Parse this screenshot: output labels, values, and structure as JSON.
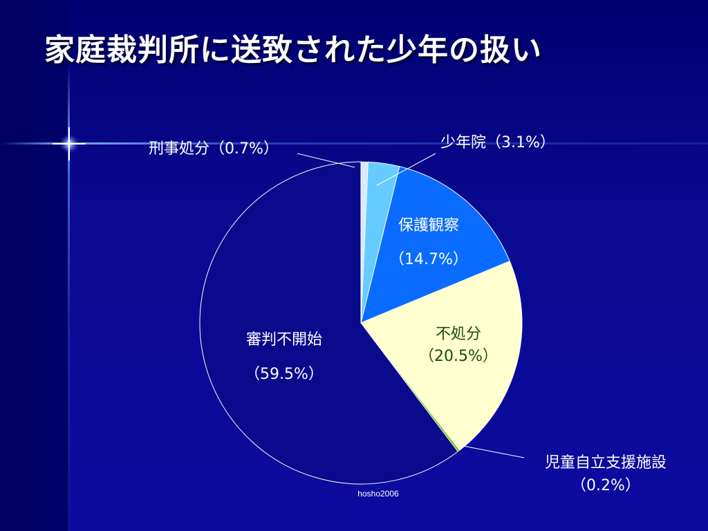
{
  "slide": {
    "title": "家庭裁判所に送致された少年の扱い",
    "footer": "hosho2006"
  },
  "chart_data": {
    "type": "pie",
    "title": "家庭裁判所に送致された少年の扱い",
    "start_angle_deg": 0,
    "direction": "clockwise",
    "slices": [
      {
        "label": "刑事処分",
        "pct_label": "（0.7%）",
        "value": 0.7,
        "color": "#d8e8ff",
        "label_mode": "leader"
      },
      {
        "label": "少年院",
        "pct_label": "（3.1%）",
        "value": 3.1,
        "color": "#66ccff",
        "label_mode": "leader"
      },
      {
        "label": "保護観察",
        "pct_label": "（14.7%）",
        "value": 14.7,
        "color": "#0a6cff",
        "label_mode": "inside"
      },
      {
        "label": "不処分",
        "pct_label": "（20.5%）",
        "value": 20.5,
        "color": "#ffffd0",
        "label_mode": "inside"
      },
      {
        "label": "児童自立支援施設",
        "pct_label": "（0.2%）",
        "value": 0.2,
        "color": "#66cc00",
        "label_mode": "leader"
      },
      {
        "label": "審判不開始",
        "pct_label": "（59.5%）",
        "value": 59.5,
        "color": "#0a0a8c",
        "label_mode": "inside"
      }
    ],
    "colors": {
      "outline": "#ffffff",
      "label_light": "#ffffff",
      "label_dark": "#1a4a0a",
      "leader": "#ffffff"
    }
  }
}
